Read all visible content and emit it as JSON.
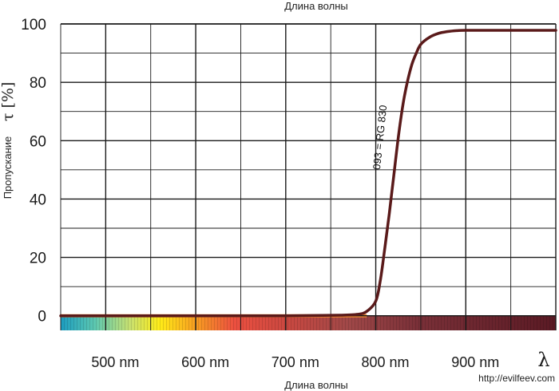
{
  "chart_data": {
    "type": "line",
    "title": "",
    "xlabel_top": "Длина волны",
    "xlabel": "Длина волны",
    "ylabel": "Пропускание",
    "ylabel_symbol": "τ [%]",
    "x_unit_symbol": "λ",
    "xlim": [
      450,
      1000
    ],
    "ylim": [
      -5,
      100
    ],
    "x_ticks": [
      {
        "value": 500,
        "label": "500 nm"
      },
      {
        "value": 600,
        "label": "600 nm"
      },
      {
        "value": 700,
        "label": "700 nm"
      },
      {
        "value": 800,
        "label": "800 nm"
      },
      {
        "value": 900,
        "label": "900 nm"
      }
    ],
    "y_ticks": [
      {
        "value": 100,
        "label": "100"
      },
      {
        "value": 80,
        "label": "80"
      },
      {
        "value": 60,
        "label": "60"
      },
      {
        "value": 40,
        "label": "40"
      },
      {
        "value": 20,
        "label": "20"
      },
      {
        "value": 0,
        "label": "0"
      }
    ],
    "grid": true,
    "series": [
      {
        "name": "093 = RG 830",
        "color": "#5a1a1a",
        "x": [
          450,
          600,
          700,
          760,
          780,
          790,
          800,
          805,
          810,
          815,
          820,
          825,
          830,
          835,
          840,
          845,
          850,
          860,
          870,
          880,
          890,
          900,
          950,
          1000
        ],
        "y": [
          0,
          0,
          0,
          0.2,
          0.5,
          1.5,
          5,
          12,
          23,
          35,
          48,
          61,
          72,
          80,
          86,
          90,
          93,
          95.5,
          96.8,
          97.4,
          97.7,
          97.8,
          97.8,
          97.8
        ]
      }
    ]
  },
  "watermark": "http://evilfeev.com"
}
